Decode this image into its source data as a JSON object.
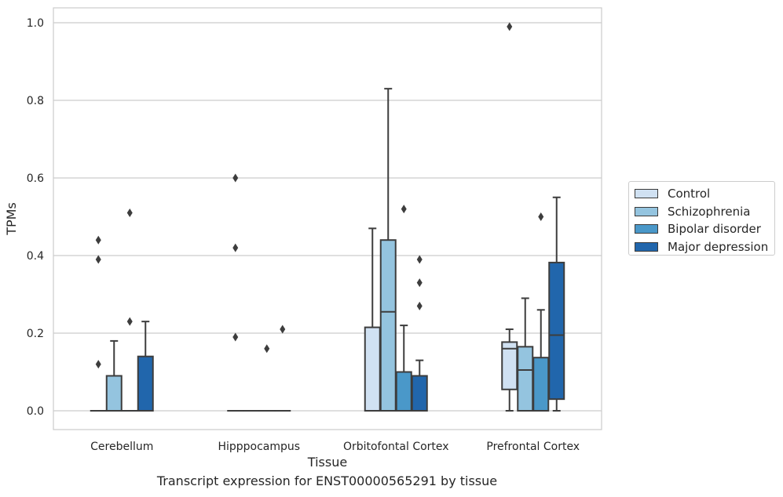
{
  "chart_data": {
    "type": "box",
    "title": "Transcript expression for ENST00000565291 by tissue",
    "xlabel": "Tissue",
    "ylabel": "TPMs",
    "ylim": [
      -0.048,
      1.04
    ],
    "yticks": [
      0.0,
      0.2,
      0.4,
      0.6,
      0.8,
      1.0
    ],
    "ytick_labels": [
      "0.0",
      "0.2",
      "0.4",
      "0.6",
      "0.8",
      "1.0"
    ],
    "grid": "horizontal",
    "legend_position": "right",
    "categories": [
      "Cerebellum",
      "Hipppocampus",
      "Orbitofontal Cortex",
      "Prefrontal Cortex"
    ],
    "series": [
      {
        "name": "Control",
        "color": "#d0e1f2",
        "boxes": [
          {
            "q1": 0,
            "median": 0,
            "q3": 0,
            "whisker_low": 0,
            "whisker_high": 0,
            "outliers": [
              0.12,
              0.39,
              0.44
            ]
          },
          {
            "q1": 0,
            "median": 0,
            "q3": 0,
            "whisker_low": 0,
            "whisker_high": 0,
            "outliers": [
              0.19,
              0.42,
              0.6
            ]
          },
          {
            "q1": 0,
            "median": 0,
            "q3": 0.215,
            "whisker_low": 0,
            "whisker_high": 0.47,
            "outliers": []
          },
          {
            "q1": 0.055,
            "median": 0.16,
            "q3": 0.177,
            "whisker_low": 0,
            "whisker_high": 0.21,
            "outliers": [
              0.99
            ]
          }
        ]
      },
      {
        "name": "Schizophrenia",
        "color": "#94c4df",
        "boxes": [
          {
            "q1": 0,
            "median": 0,
            "q3": 0.09,
            "whisker_low": 0,
            "whisker_high": 0.18,
            "outliers": []
          },
          {
            "q1": 0,
            "median": 0,
            "q3": 0,
            "whisker_low": 0,
            "whisker_high": 0,
            "outliers": []
          },
          {
            "q1": 0,
            "median": 0.255,
            "q3": 0.44,
            "whisker_low": 0,
            "whisker_high": 0.83,
            "outliers": []
          },
          {
            "q1": 0,
            "median": 0.105,
            "q3": 0.165,
            "whisker_low": 0,
            "whisker_high": 0.29,
            "outliers": []
          }
        ]
      },
      {
        "name": "Bipolar disorder",
        "color": "#4a98c9",
        "boxes": [
          {
            "q1": 0,
            "median": 0,
            "q3": 0,
            "whisker_low": 0,
            "whisker_high": 0,
            "outliers": [
              0.23,
              0.51
            ]
          },
          {
            "q1": 0,
            "median": 0,
            "q3": 0,
            "whisker_low": 0,
            "whisker_high": 0,
            "outliers": [
              0.16
            ]
          },
          {
            "q1": 0,
            "median": 0,
            "q3": 0.1,
            "whisker_low": 0,
            "whisker_high": 0.22,
            "outliers": [
              0.52
            ]
          },
          {
            "q1": 0,
            "median": 0,
            "q3": 0.137,
            "whisker_low": 0,
            "whisker_high": 0.26,
            "outliers": [
              0.5
            ]
          }
        ]
      },
      {
        "name": "Major depression",
        "color": "#2166ac",
        "boxes": [
          {
            "q1": 0,
            "median": 0,
            "q3": 0.14,
            "whisker_low": 0,
            "whisker_high": 0.23,
            "outliers": []
          },
          {
            "q1": 0,
            "median": 0,
            "q3": 0,
            "whisker_low": 0,
            "whisker_high": 0,
            "outliers": [
              0.21
            ]
          },
          {
            "q1": 0,
            "median": 0,
            "q3": 0.09,
            "whisker_low": 0,
            "whisker_high": 0.13,
            "outliers": [
              0.27,
              0.33,
              0.39
            ]
          },
          {
            "q1": 0.03,
            "median": 0.195,
            "q3": 0.382,
            "whisker_low": 0,
            "whisker_high": 0.55,
            "outliers": []
          }
        ]
      }
    ]
  }
}
